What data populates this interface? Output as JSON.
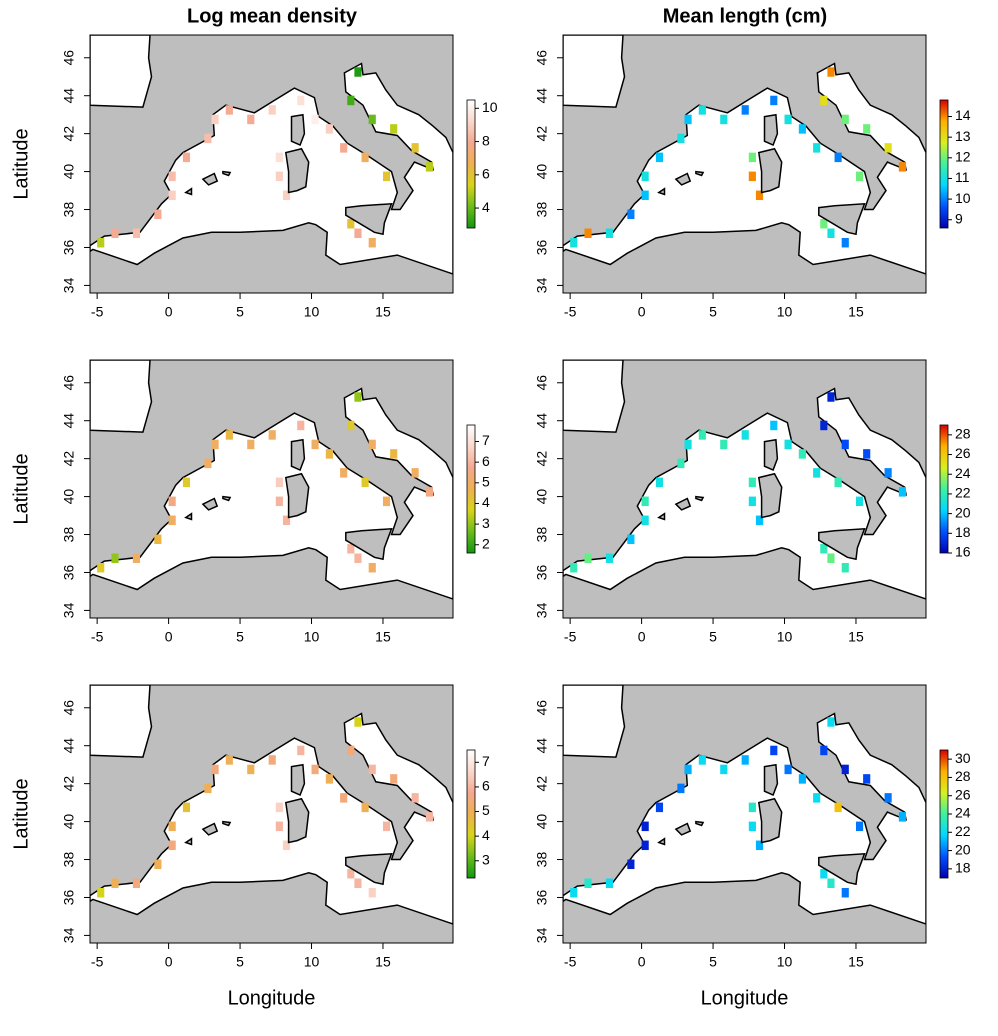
{
  "column_titles": [
    "Log mean density",
    "Mean length (cm)"
  ],
  "chart_data": [
    {
      "type": "map",
      "ylabel": "Latitude",
      "xlim": [
        -5.5,
        19.9
      ],
      "ylim": [
        33.6,
        47.2
      ],
      "xticks": [
        -5,
        0,
        5,
        10,
        15
      ],
      "yticks": [
        34,
        36,
        38,
        40,
        42,
        44,
        46
      ],
      "colorbar": {
        "lim": [
          2.8,
          10.5
        ],
        "ticks": [
          4,
          6,
          8,
          10
        ],
        "colors": [
          "#129612",
          "#6cbc1a",
          "#d8d418",
          "#eeb050",
          "#f4a890",
          "#fbd8cc",
          "#ffffff"
        ]
      },
      "lon": [
        -4.75,
        -3.75,
        -2.25,
        -0.75,
        0.25,
        0.25,
        1.25,
        2.75,
        3.25,
        4.25,
        5.75,
        7.25,
        9.25,
        10.25,
        11.25,
        12.25,
        13.75,
        15.25,
        7.75,
        7.75,
        8.25,
        13.25,
        14.25,
        12.75,
        13.25,
        12.75,
        14.25,
        15.75,
        17.25,
        18.25
      ],
      "lat": [
        36.25,
        36.75,
        36.75,
        37.75,
        38.75,
        39.75,
        40.75,
        41.75,
        42.75,
        43.25,
        42.75,
        43.25,
        43.75,
        42.75,
        42.25,
        41.25,
        40.75,
        39.75,
        39.75,
        40.75,
        38.75,
        36.75,
        36.25,
        37.25,
        45.25,
        43.75,
        42.75,
        42.25,
        41.25,
        40.25
      ],
      "values": [
        5,
        8,
        8.5,
        8,
        9,
        8.5,
        8,
        8.5,
        9,
        8,
        8,
        9,
        9.5,
        10,
        9,
        8,
        7,
        6,
        9,
        9.5,
        9,
        8,
        7,
        6,
        3,
        3.5,
        4,
        5,
        6,
        5
      ]
    },
    {
      "type": "map",
      "xlim": [
        -5.5,
        19.9
      ],
      "ylim": [
        33.6,
        47.2
      ],
      "xticks": [
        -5,
        0,
        5,
        10,
        15
      ],
      "yticks": [
        34,
        36,
        38,
        40,
        42,
        44,
        46
      ],
      "colorbar": {
        "lim": [
          8.6,
          14.8
        ],
        "ticks": [
          9,
          10,
          11,
          12,
          13,
          14
        ],
        "colors": [
          "#0000b0",
          "#0050ff",
          "#00d8ff",
          "#40f0a0",
          "#d8f020",
          "#ffb000",
          "#d80000"
        ]
      },
      "lon": [
        -4.75,
        -3.75,
        -2.25,
        -0.75,
        0.25,
        0.25,
        1.25,
        2.75,
        3.25,
        4.25,
        5.75,
        7.25,
        9.25,
        10.25,
        11.25,
        12.25,
        13.75,
        15.25,
        7.75,
        7.75,
        8.25,
        13.25,
        14.25,
        12.75,
        13.25,
        12.75,
        14.25,
        15.75,
        17.25,
        18.25
      ],
      "lat": [
        36.25,
        36.75,
        36.75,
        37.75,
        38.75,
        39.75,
        40.75,
        41.75,
        42.75,
        43.25,
        42.75,
        43.25,
        43.75,
        42.75,
        42.25,
        41.25,
        40.75,
        39.75,
        39.75,
        40.75,
        38.75,
        36.75,
        36.25,
        37.25,
        45.25,
        43.75,
        42.75,
        42.25,
        41.25,
        40.25
      ],
      "values": [
        11,
        14,
        11,
        10,
        10.5,
        11,
        10.5,
        11,
        10.5,
        11,
        11,
        10,
        10,
        11,
        10.5,
        11,
        10,
        12,
        14,
        12,
        14,
        11,
        10,
        12,
        14,
        13,
        12,
        12,
        13,
        14
      ]
    },
    {
      "type": "map",
      "ylabel": "Latitude",
      "xlim": [
        -5.5,
        19.9
      ],
      "ylim": [
        33.6,
        47.2
      ],
      "xticks": [
        -5,
        0,
        5,
        10,
        15
      ],
      "yticks": [
        34,
        36,
        38,
        40,
        42,
        44,
        46
      ],
      "colorbar": {
        "lim": [
          1.6,
          7.8
        ],
        "ticks": [
          2,
          3,
          4,
          5,
          6,
          7
        ],
        "colors": [
          "#129612",
          "#6cbc1a",
          "#d8d418",
          "#eeb050",
          "#f4a890",
          "#fbd8cc",
          "#ffffff"
        ]
      },
      "lon": [
        -4.75,
        -3.75,
        -2.25,
        -0.75,
        0.25,
        0.25,
        1.25,
        2.75,
        3.25,
        4.25,
        5.75,
        7.25,
        9.25,
        10.25,
        11.25,
        12.25,
        13.75,
        15.25,
        7.75,
        7.75,
        8.25,
        13.25,
        14.25,
        12.75,
        13.25,
        12.75,
        14.25,
        15.75,
        17.25,
        18.25
      ],
      "lat": [
        36.25,
        36.75,
        36.75,
        37.75,
        38.75,
        39.75,
        40.75,
        41.75,
        42.75,
        43.25,
        42.75,
        43.25,
        43.75,
        42.75,
        42.25,
        41.25,
        40.75,
        39.75,
        39.75,
        40.75,
        38.75,
        36.75,
        36.25,
        37.25,
        45.25,
        43.75,
        42.75,
        42.25,
        41.25,
        40.25
      ],
      "values": [
        4,
        3,
        5,
        4.5,
        5,
        5.5,
        4,
        5,
        5,
        4.5,
        5,
        5,
        6,
        5,
        4.5,
        5,
        4,
        5,
        6,
        6.5,
        6,
        6,
        5,
        6,
        3,
        4,
        5,
        4.5,
        5,
        5.5
      ]
    },
    {
      "type": "map",
      "xlim": [
        -5.5,
        19.9
      ],
      "ylim": [
        33.6,
        47.2
      ],
      "xticks": [
        -5,
        0,
        5,
        10,
        15
      ],
      "yticks": [
        34,
        36,
        38,
        40,
        42,
        44,
        46
      ],
      "colorbar": {
        "lim": [
          16,
          29
        ],
        "ticks": [
          16,
          18,
          20,
          22,
          24,
          26,
          28
        ],
        "colors": [
          "#0000b0",
          "#0050ff",
          "#00d8ff",
          "#40f0a0",
          "#d8f020",
          "#ffb000",
          "#d80000"
        ]
      },
      "lon": [
        -4.75,
        -3.75,
        -2.25,
        -0.75,
        0.25,
        0.25,
        1.25,
        2.75,
        3.25,
        4.25,
        5.75,
        7.25,
        9.25,
        10.25,
        11.25,
        12.25,
        13.75,
        15.25,
        7.75,
        7.75,
        8.25,
        13.25,
        14.25,
        12.75,
        13.25,
        12.75,
        14.25,
        15.75,
        17.25,
        18.25
      ],
      "lat": [
        36.25,
        36.75,
        36.75,
        37.75,
        38.75,
        39.75,
        40.75,
        41.75,
        42.75,
        43.25,
        42.75,
        43.25,
        43.75,
        42.75,
        42.25,
        41.25,
        40.75,
        39.75,
        39.75,
        40.75,
        38.75,
        36.75,
        36.25,
        37.25,
        45.25,
        43.75,
        42.75,
        42.25,
        41.25,
        40.25
      ],
      "values": [
        22,
        23,
        21,
        20,
        21,
        22,
        21,
        22,
        21,
        22,
        22,
        21,
        20,
        21,
        22,
        21,
        22,
        21,
        21,
        22,
        20,
        23,
        22,
        22,
        17,
        17,
        18,
        18,
        19,
        20
      ]
    },
    {
      "type": "map",
      "ylabel": "Latitude",
      "xlabel": "Longitude",
      "xlim": [
        -5.5,
        19.9
      ],
      "ylim": [
        33.6,
        47.2
      ],
      "xticks": [
        -5,
        0,
        5,
        10,
        15
      ],
      "yticks": [
        34,
        36,
        38,
        40,
        42,
        44,
        46
      ],
      "colorbar": {
        "lim": [
          2.3,
          7.5
        ],
        "ticks": [
          3,
          4,
          5,
          6,
          7
        ],
        "colors": [
          "#129612",
          "#6cbc1a",
          "#d8d418",
          "#eeb050",
          "#f4a890",
          "#fbd8cc",
          "#ffffff"
        ]
      },
      "lon": [
        -4.75,
        -3.75,
        -2.25,
        -0.75,
        0.25,
        0.25,
        1.25,
        2.75,
        3.25,
        4.25,
        5.75,
        7.25,
        9.25,
        10.25,
        11.25,
        12.25,
        13.75,
        15.25,
        7.75,
        7.75,
        8.25,
        13.25,
        14.25,
        12.75,
        13.25,
        12.75,
        14.25,
        15.75,
        17.25,
        18.25
      ],
      "lat": [
        36.25,
        36.75,
        36.75,
        37.75,
        38.75,
        39.75,
        40.75,
        41.75,
        42.75,
        43.25,
        42.75,
        43.25,
        43.75,
        42.75,
        42.25,
        41.25,
        40.75,
        39.75,
        39.75,
        40.75,
        38.75,
        36.75,
        36.25,
        37.25,
        45.25,
        43.75,
        42.75,
        42.25,
        41.25,
        40.25
      ],
      "values": [
        4,
        5,
        5.5,
        5,
        5.5,
        5,
        4.5,
        5,
        5.5,
        5,
        5,
        5.5,
        6,
        5.5,
        5,
        5.5,
        5,
        6,
        6,
        6.5,
        6.5,
        6,
        6.5,
        6,
        4,
        5.5,
        6,
        5.5,
        6,
        6
      ]
    },
    {
      "type": "map",
      "xlabel": "Longitude",
      "xlim": [
        -5.5,
        19.9
      ],
      "ylim": [
        33.6,
        47.2
      ],
      "xticks": [
        -5,
        0,
        5,
        10,
        15
      ],
      "yticks": [
        34,
        36,
        38,
        40,
        42,
        44,
        46
      ],
      "colorbar": {
        "lim": [
          17,
          31
        ],
        "ticks": [
          18,
          20,
          22,
          24,
          26,
          28,
          30
        ],
        "colors": [
          "#0000b0",
          "#0050ff",
          "#00d8ff",
          "#40f0a0",
          "#d8f020",
          "#ffb000",
          "#d80000"
        ]
      },
      "lon": [
        -4.75,
        -3.75,
        -2.25,
        -0.75,
        0.25,
        0.25,
        1.25,
        2.75,
        3.25,
        4.25,
        5.75,
        7.25,
        9.25,
        10.25,
        11.25,
        12.25,
        13.75,
        15.25,
        7.75,
        7.75,
        8.25,
        13.25,
        14.25,
        12.75,
        13.25,
        12.75,
        14.25,
        15.75,
        17.25,
        18.25
      ],
      "lat": [
        36.25,
        36.75,
        36.75,
        37.75,
        38.75,
        39.75,
        40.75,
        41.75,
        42.75,
        43.25,
        42.75,
        43.25,
        43.75,
        42.75,
        42.25,
        41.25,
        40.75,
        39.75,
        39.75,
        40.75,
        38.75,
        36.75,
        36.25,
        37.25,
        45.25,
        43.75,
        42.75,
        42.25,
        41.25,
        40.25
      ],
      "values": [
        22,
        23,
        22,
        18,
        18,
        18,
        19,
        20,
        21,
        22,
        22,
        21,
        19,
        20,
        21,
        22,
        28,
        20,
        22,
        23,
        21,
        23,
        20,
        22,
        22,
        19,
        18,
        19,
        20,
        21
      ]
    }
  ]
}
